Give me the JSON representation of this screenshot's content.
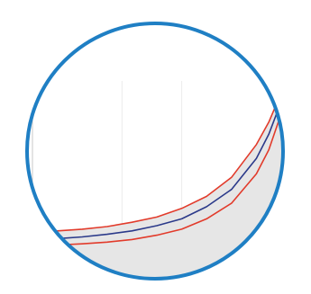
{
  "colors": {
    "ring": "#1f7fc4",
    "fit_line": "#2b3a8a",
    "bound_line": "#e23b2b",
    "shaded_region": "#e6e6e6",
    "plot_border": "#c9c9c9",
    "grid": "#ececec"
  },
  "chart_data": {
    "type": "line",
    "title": "",
    "xlabel": "",
    "ylabel": "",
    "grid": true,
    "legend": "none",
    "xlim": [
      0,
      1
    ],
    "ylim": [
      0,
      1
    ],
    "fit": {
      "x": [
        0.0,
        0.1,
        0.2,
        0.3,
        0.4,
        0.5,
        0.6,
        0.7,
        0.8,
        0.9,
        0.95,
        1.0
      ],
      "y": [
        0.05,
        0.055,
        0.065,
        0.08,
        0.1,
        0.13,
        0.17,
        0.24,
        0.34,
        0.52,
        0.66,
        0.85
      ]
    },
    "series": [
      {
        "x": [
          0.0,
          0.1,
          0.2,
          0.3,
          0.4,
          0.5,
          0.6,
          0.7,
          0.8,
          0.9,
          0.95,
          1.0
        ],
        "y": [
          0.095,
          0.1,
          0.11,
          0.125,
          0.15,
          0.18,
          0.23,
          0.3,
          0.41,
          0.6,
          0.73,
          0.9
        ]
      },
      {
        "x": [
          0.0,
          0.1,
          0.2,
          0.3,
          0.4,
          0.5,
          0.6,
          0.7,
          0.8,
          0.9,
          0.95,
          1.0
        ],
        "y": [
          0.015,
          0.018,
          0.025,
          0.035,
          0.05,
          0.075,
          0.11,
          0.17,
          0.26,
          0.43,
          0.57,
          0.78
        ]
      }
    ]
  }
}
